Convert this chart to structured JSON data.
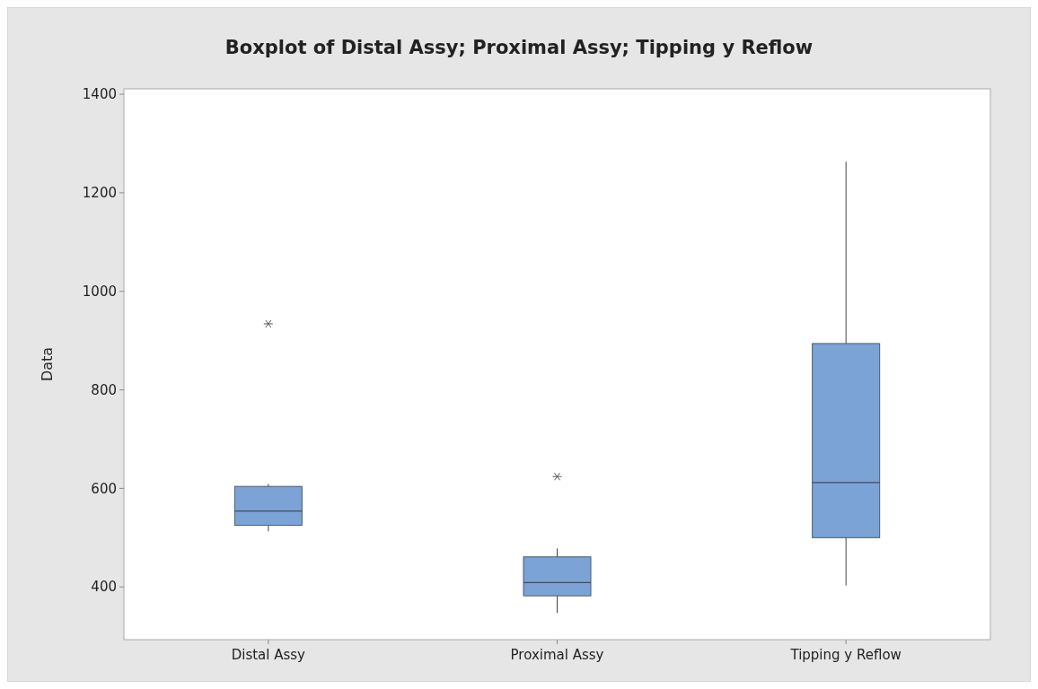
{
  "chart_data": {
    "type": "box",
    "title": "Boxplot of Distal Assy; Proximal Assy; Tipping y Reflow",
    "ylabel": "Data",
    "categories": [
      "Distal Assy",
      "Proximal Assy",
      "Tipping y Reflow"
    ],
    "color": "#7ba3d6",
    "ylim": [
      293,
      1411
    ],
    "yticks": [
      400,
      600,
      800,
      1000,
      1200,
      1400
    ],
    "grid": false,
    "boxes": [
      {
        "low": 513,
        "q1": 525,
        "median": 554,
        "q3": 604,
        "high": 609,
        "outliers": [
          934
        ]
      },
      {
        "low": 347,
        "q1": 382,
        "median": 409,
        "q3": 461,
        "high": 478,
        "outliers": [
          624
        ]
      },
      {
        "low": 403,
        "q1": 500,
        "median": 612,
        "q3": 894,
        "high": 1263
      }
    ]
  }
}
